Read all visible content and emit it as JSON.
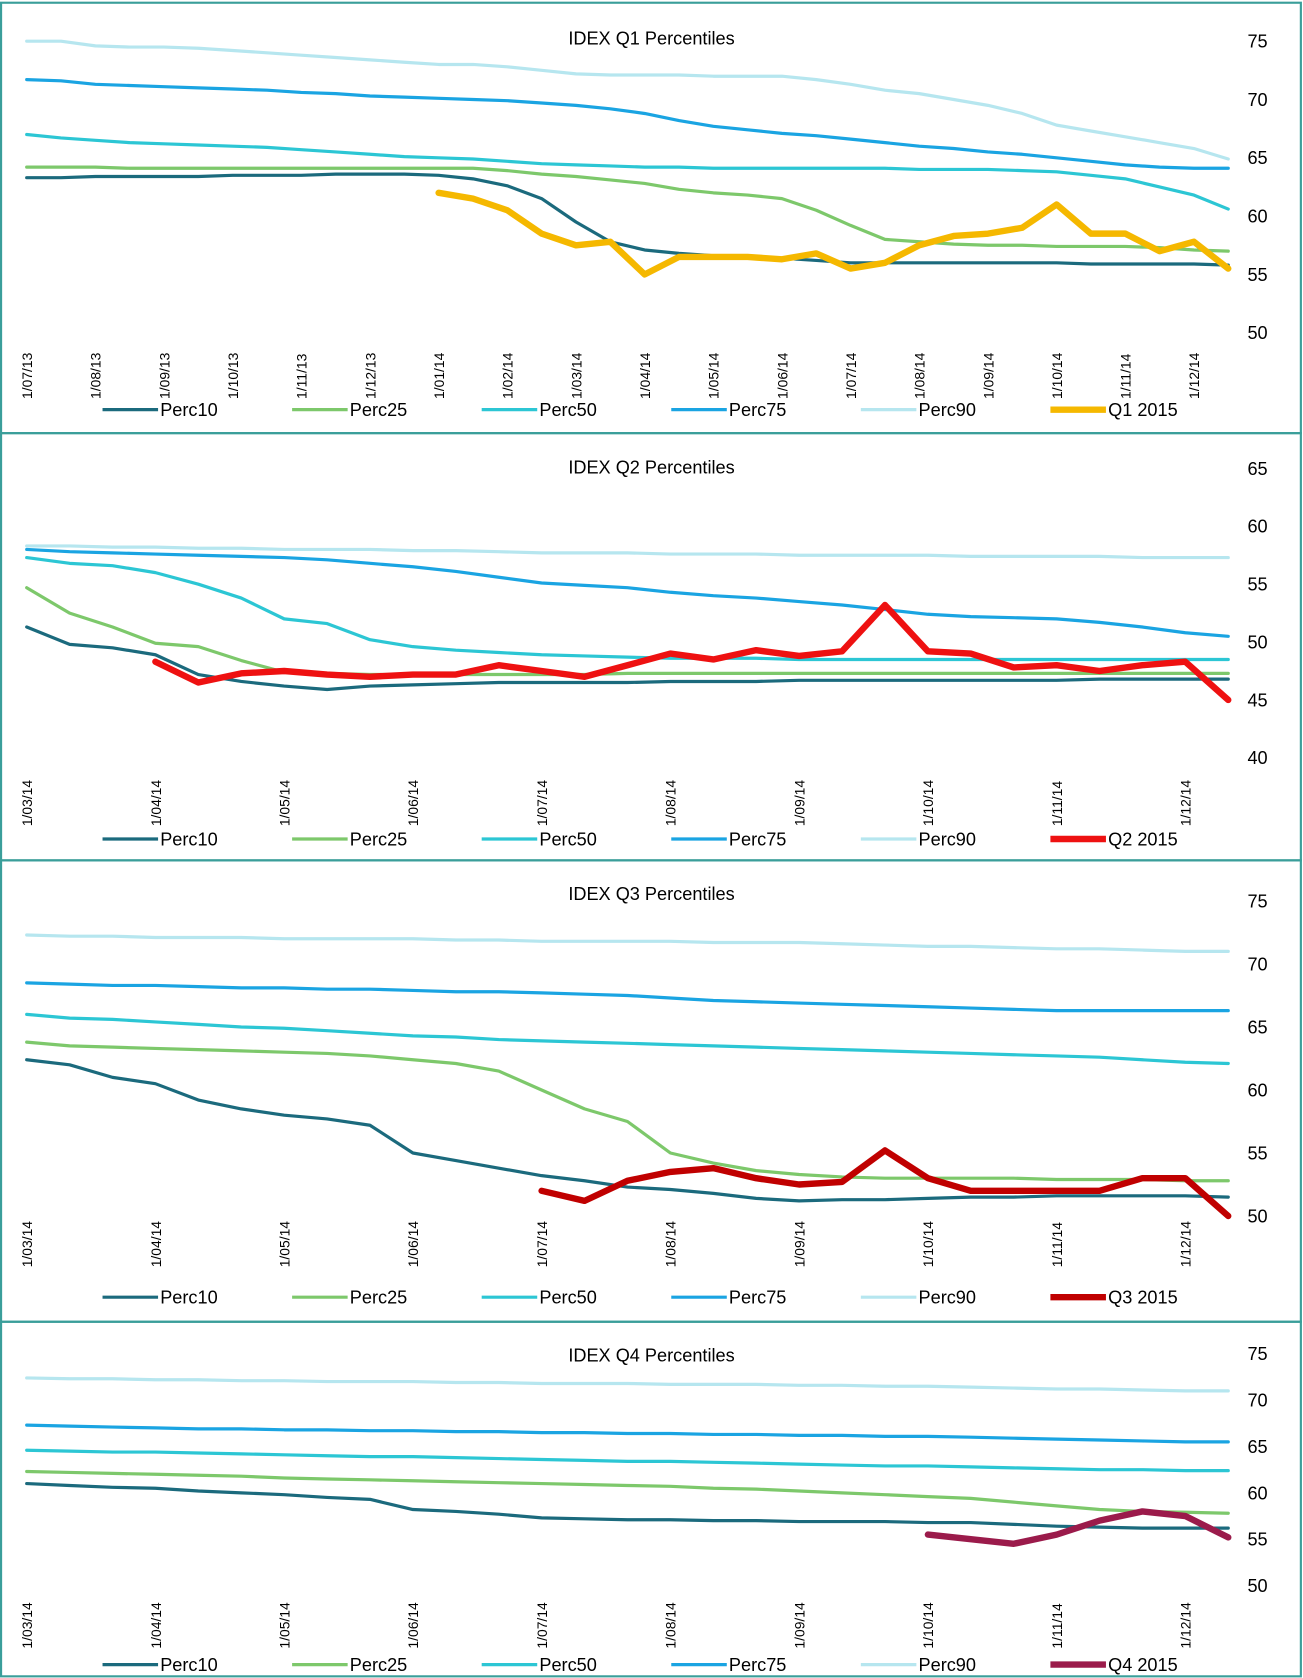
{
  "chart_data": [
    {
      "type": "line",
      "title": "IDEX Q1 Percentiles",
      "legend": "bottom",
      "ylim": [
        50,
        75
      ],
      "yticks": [
        50,
        55,
        60,
        65,
        70,
        75
      ],
      "categories": [
        "1/07/13",
        null,
        "1/08/13",
        null,
        "1/09/13",
        null,
        "1/10/13",
        null,
        "1/11/13",
        null,
        "1/12/13",
        null,
        "1/01/14",
        null,
        "1/02/14",
        null,
        "1/03/14",
        null,
        "1/04/14",
        null,
        "1/05/14",
        null,
        "1/06/14",
        null,
        "1/07/14",
        null,
        "1/08/14",
        null,
        "1/09/14",
        null,
        "1/10/14",
        null,
        "1/11/14",
        null,
        "1/12/14",
        null
      ],
      "series": [
        {
          "name": "Perc10",
          "color": "#1b6a7d",
          "line_width": 3,
          "values": [
            63.3,
            63.3,
            63.4,
            63.4,
            63.4,
            63.4,
            63.5,
            63.5,
            63.5,
            63.6,
            63.6,
            63.6,
            63.5,
            63.2,
            62.6,
            61.5,
            59.5,
            57.8,
            57.1,
            56.8,
            56.6,
            56.5,
            56.4,
            56.2,
            56,
            56,
            56,
            56,
            56,
            56,
            56,
            55.9,
            55.9,
            55.9,
            55.9,
            55.8
          ]
        },
        {
          "name": "Perc25",
          "color": "#7dc86b",
          "line_width": 3,
          "values": [
            64.2,
            64.2,
            64.2,
            64.1,
            64.1,
            64.1,
            64.1,
            64.1,
            64.1,
            64.1,
            64.1,
            64.1,
            64.1,
            64.1,
            63.9,
            63.6,
            63.4,
            63.1,
            62.8,
            62.3,
            62,
            61.8,
            61.5,
            60.5,
            59.2,
            58,
            57.8,
            57.6,
            57.5,
            57.5,
            57.4,
            57.4,
            57.4,
            57.3,
            57.1,
            57
          ]
        },
        {
          "name": "Perc50",
          "color": "#2cc6d4",
          "line_width": 3,
          "values": [
            67,
            66.7,
            66.5,
            66.3,
            66.2,
            66.1,
            66,
            65.9,
            65.7,
            65.5,
            65.3,
            65.1,
            65,
            64.9,
            64.7,
            64.5,
            64.4,
            64.3,
            64.2,
            64.2,
            64.1,
            64.1,
            64.1,
            64.1,
            64.1,
            64.1,
            64,
            64,
            64,
            63.9,
            63.8,
            63.5,
            63.2,
            62.5,
            61.8,
            60.6
          ]
        },
        {
          "name": "Perc75",
          "color": "#1aa4e2",
          "line_width": 3,
          "values": [
            71.7,
            71.6,
            71.3,
            71.2,
            71.1,
            71,
            70.9,
            70.8,
            70.6,
            70.5,
            70.3,
            70.2,
            70.1,
            70,
            69.9,
            69.7,
            69.5,
            69.2,
            68.8,
            68.2,
            67.7,
            67.4,
            67.1,
            66.9,
            66.6,
            66.3,
            66,
            65.8,
            65.5,
            65.3,
            65,
            64.7,
            64.4,
            64.2,
            64.1,
            64.1
          ]
        },
        {
          "name": "Perc90",
          "color": "#b6e6ef",
          "line_width": 3,
          "values": [
            75,
            75,
            74.6,
            74.5,
            74.5,
            74.4,
            74.2,
            74,
            73.8,
            73.6,
            73.4,
            73.2,
            73,
            73,
            72.8,
            72.5,
            72.2,
            72.1,
            72.1,
            72.1,
            72,
            72,
            72,
            71.7,
            71.3,
            70.8,
            70.5,
            70,
            69.5,
            68.8,
            67.8,
            67.3,
            66.8,
            66.3,
            65.8,
            64.9
          ]
        },
        {
          "name": "Q1 2015",
          "color": "#f5b800",
          "line_width": 6,
          "values": [
            null,
            null,
            null,
            null,
            null,
            null,
            null,
            null,
            null,
            null,
            null,
            null,
            62,
            61.5,
            60.5,
            58.5,
            57.5,
            57.8,
            55,
            56.5,
            56.5,
            56.5,
            56.3,
            56.8,
            55.5,
            56,
            57.5,
            58.3,
            58.5,
            59,
            61,
            58.5,
            58.5,
            57,
            57.8,
            55.5
          ]
        }
      ]
    },
    {
      "type": "line",
      "title": "IDEX Q2 Percentiles",
      "legend": "bottom",
      "ylim": [
        40,
        65
      ],
      "yticks": [
        40,
        45,
        50,
        55,
        60,
        65
      ],
      "categories": [
        "1/03/14",
        null,
        null,
        "1/04/14",
        null,
        null,
        "1/05/14",
        null,
        null,
        "1/06/14",
        null,
        null,
        "1/07/14",
        null,
        null,
        "1/08/14",
        null,
        null,
        "1/09/14",
        null,
        null,
        "1/10/14",
        null,
        null,
        "1/11/14",
        null,
        null,
        "1/12/14",
        null
      ],
      "series": [
        {
          "name": "Perc10",
          "color": "#1b6a7d",
          "line_width": 3,
          "values": [
            51.3,
            49.8,
            49.5,
            48.9,
            47.2,
            46.6,
            46.2,
            45.9,
            46.2,
            46.3,
            46.4,
            46.5,
            46.5,
            46.5,
            46.5,
            46.6,
            46.6,
            46.6,
            46.7,
            46.7,
            46.7,
            46.7,
            46.7,
            46.7,
            46.7,
            46.8,
            46.8,
            46.8,
            46.8
          ]
        },
        {
          "name": "Perc25",
          "color": "#7dc86b",
          "line_width": 3,
          "values": [
            54.7,
            52.5,
            51.3,
            49.9,
            49.6,
            48.4,
            47.4,
            47.3,
            47.2,
            47.2,
            47.2,
            47.2,
            47.2,
            47.2,
            47.3,
            47.3,
            47.3,
            47.3,
            47.3,
            47.3,
            47.3,
            47.3,
            47.3,
            47.3,
            47.3,
            47.3,
            47.3,
            47.3,
            47.3
          ]
        },
        {
          "name": "Perc50",
          "color": "#2cc6d4",
          "line_width": 3,
          "values": [
            57.3,
            56.8,
            56.6,
            56,
            55,
            53.8,
            52,
            51.6,
            50.2,
            49.6,
            49.3,
            49.1,
            48.9,
            48.8,
            48.7,
            48.6,
            48.6,
            48.6,
            48.5,
            48.5,
            48.5,
            48.5,
            48.5,
            48.5,
            48.5,
            48.5,
            48.5,
            48.5,
            48.5
          ]
        },
        {
          "name": "Perc75",
          "color": "#1aa4e2",
          "line_width": 3,
          "values": [
            58,
            57.8,
            57.7,
            57.6,
            57.5,
            57.4,
            57.3,
            57.1,
            56.8,
            56.5,
            56.1,
            55.6,
            55.1,
            54.9,
            54.7,
            54.3,
            54,
            53.8,
            53.5,
            53.2,
            52.8,
            52.4,
            52.2,
            52.1,
            52,
            51.7,
            51.3,
            50.8,
            50.5
          ]
        },
        {
          "name": "Perc90",
          "color": "#b6e6ef",
          "line_width": 3,
          "values": [
            58.3,
            58.3,
            58.2,
            58.2,
            58.1,
            58.1,
            58,
            58,
            58,
            57.9,
            57.9,
            57.8,
            57.7,
            57.7,
            57.7,
            57.6,
            57.6,
            57.6,
            57.5,
            57.5,
            57.5,
            57.5,
            57.4,
            57.4,
            57.4,
            57.4,
            57.3,
            57.3,
            57.3
          ]
        },
        {
          "name": "Q2 2015",
          "color": "#ee1111",
          "line_width": 6,
          "values": [
            null,
            null,
            null,
            48.3,
            46.5,
            47.3,
            47.5,
            47.2,
            47,
            47.2,
            47.2,
            48,
            47.5,
            47,
            48,
            49,
            48.5,
            49.3,
            48.8,
            49.2,
            53.2,
            49.2,
            49,
            47.8,
            48,
            47.5,
            48,
            48.3,
            45
          ]
        }
      ]
    },
    {
      "type": "line",
      "title": "IDEX Q3 Percentiles",
      "legend": "bottom",
      "ylim": [
        50,
        75
      ],
      "yticks": [
        50,
        55,
        60,
        65,
        70,
        75
      ],
      "categories": [
        "1/03/14",
        null,
        null,
        "1/04/14",
        null,
        null,
        "1/05/14",
        null,
        null,
        "1/06/14",
        null,
        null,
        "1/07/14",
        null,
        null,
        "1/08/14",
        null,
        null,
        "1/09/14",
        null,
        null,
        "1/10/14",
        null,
        null,
        "1/11/14",
        null,
        null,
        "1/12/14",
        null
      ],
      "series": [
        {
          "name": "Perc10",
          "color": "#1b6a7d",
          "line_width": 3,
          "values": [
            62.4,
            62,
            61,
            60.5,
            59.2,
            58.5,
            58,
            57.7,
            57.2,
            55,
            54.4,
            53.8,
            53.2,
            52.8,
            52.3,
            52.1,
            51.8,
            51.4,
            51.2,
            51.3,
            51.3,
            51.4,
            51.5,
            51.5,
            51.6,
            51.6,
            51.6,
            51.6,
            51.5
          ]
        },
        {
          "name": "Perc25",
          "color": "#7dc86b",
          "line_width": 3,
          "values": [
            63.8,
            63.5,
            63.4,
            63.3,
            63.2,
            63.1,
            63,
            62.9,
            62.7,
            62.4,
            62.1,
            61.5,
            60,
            58.5,
            57.5,
            55,
            54.2,
            53.6,
            53.3,
            53.1,
            53,
            53,
            53,
            53,
            52.9,
            52.9,
            52.9,
            52.8,
            52.8
          ]
        },
        {
          "name": "Perc50",
          "color": "#2cc6d4",
          "line_width": 3,
          "values": [
            66,
            65.7,
            65.6,
            65.4,
            65.2,
            65,
            64.9,
            64.7,
            64.5,
            64.3,
            64.2,
            64,
            63.9,
            63.8,
            63.7,
            63.6,
            63.5,
            63.4,
            63.3,
            63.2,
            63.1,
            63,
            62.9,
            62.8,
            62.7,
            62.6,
            62.4,
            62.2,
            62.1
          ]
        },
        {
          "name": "Perc75",
          "color": "#1aa4e2",
          "line_width": 3,
          "values": [
            68.5,
            68.4,
            68.3,
            68.3,
            68.2,
            68.1,
            68.1,
            68,
            68,
            67.9,
            67.8,
            67.8,
            67.7,
            67.6,
            67.5,
            67.3,
            67.1,
            67,
            66.9,
            66.8,
            66.7,
            66.6,
            66.5,
            66.4,
            66.3,
            66.3,
            66.3,
            66.3,
            66.3
          ]
        },
        {
          "name": "Perc90",
          "color": "#b6e6ef",
          "line_width": 3,
          "values": [
            72.3,
            72.2,
            72.2,
            72.1,
            72.1,
            72.1,
            72,
            72,
            72,
            72,
            71.9,
            71.9,
            71.8,
            71.8,
            71.8,
            71.8,
            71.7,
            71.7,
            71.7,
            71.6,
            71.5,
            71.4,
            71.4,
            71.3,
            71.2,
            71.2,
            71.1,
            71,
            71
          ]
        },
        {
          "name": "Q3 2015",
          "color": "#c00000",
          "line_width": 6,
          "values": [
            null,
            null,
            null,
            null,
            null,
            null,
            null,
            null,
            null,
            null,
            null,
            null,
            52,
            51.2,
            52.8,
            53.5,
            53.8,
            53,
            52.5,
            52.7,
            55.2,
            53,
            52,
            52,
            52,
            52,
            53,
            53,
            50
          ]
        }
      ]
    },
    {
      "type": "line",
      "title": "IDEX Q4 Percentiles",
      "legend": "bottom",
      "ylim": [
        50,
        75
      ],
      "yticks": [
        50,
        55,
        60,
        65,
        70,
        75
      ],
      "categories": [
        "1/03/14",
        null,
        null,
        "1/04/14",
        null,
        null,
        "1/05/14",
        null,
        null,
        "1/06/14",
        null,
        null,
        "1/07/14",
        null,
        null,
        "1/08/14",
        null,
        null,
        "1/09/14",
        null,
        null,
        "1/10/14",
        null,
        null,
        "1/11/14",
        null,
        null,
        "1/12/14",
        null
      ],
      "series": [
        {
          "name": "Perc10",
          "color": "#1b6a7d",
          "line_width": 3,
          "values": [
            61,
            60.8,
            60.6,
            60.5,
            60.2,
            60,
            59.8,
            59.5,
            59.3,
            58.2,
            58,
            57.7,
            57.3,
            57.2,
            57.1,
            57.1,
            57,
            57,
            56.9,
            56.9,
            56.9,
            56.8,
            56.8,
            56.6,
            56.4,
            56.3,
            56.2,
            56.2,
            56.2
          ]
        },
        {
          "name": "Perc25",
          "color": "#7dc86b",
          "line_width": 3,
          "values": [
            62.3,
            62.2,
            62.1,
            62,
            61.9,
            61.8,
            61.6,
            61.5,
            61.4,
            61.3,
            61.2,
            61.1,
            61,
            60.9,
            60.8,
            60.7,
            60.5,
            60.4,
            60.2,
            60,
            59.8,
            59.6,
            59.4,
            59,
            58.6,
            58.2,
            58,
            57.9,
            57.8
          ]
        },
        {
          "name": "Perc50",
          "color": "#2cc6d4",
          "line_width": 3,
          "values": [
            64.6,
            64.5,
            64.4,
            64.4,
            64.3,
            64.2,
            64.1,
            64,
            63.9,
            63.9,
            63.8,
            63.7,
            63.6,
            63.5,
            63.4,
            63.4,
            63.3,
            63.2,
            63.1,
            63,
            62.9,
            62.9,
            62.8,
            62.7,
            62.6,
            62.5,
            62.5,
            62.4,
            62.4
          ]
        },
        {
          "name": "Perc75",
          "color": "#1aa4e2",
          "line_width": 3,
          "values": [
            67.3,
            67.2,
            67.1,
            67,
            66.9,
            66.9,
            66.8,
            66.8,
            66.7,
            66.7,
            66.6,
            66.6,
            66.5,
            66.5,
            66.4,
            66.4,
            66.3,
            66.3,
            66.2,
            66.2,
            66.1,
            66.1,
            66,
            65.9,
            65.8,
            65.7,
            65.6,
            65.5,
            65.5
          ]
        },
        {
          "name": "Perc90",
          "color": "#b6e6ef",
          "line_width": 3,
          "values": [
            72.4,
            72.3,
            72.3,
            72.2,
            72.2,
            72.1,
            72.1,
            72,
            72,
            72,
            71.9,
            71.9,
            71.8,
            71.8,
            71.8,
            71.7,
            71.7,
            71.7,
            71.6,
            71.6,
            71.5,
            71.5,
            71.4,
            71.3,
            71.2,
            71.2,
            71.1,
            71,
            71
          ]
        },
        {
          "name": "Q4 2015",
          "color": "#9b1b4b",
          "line_width": 6,
          "values": [
            null,
            null,
            null,
            null,
            null,
            null,
            null,
            null,
            null,
            null,
            null,
            null,
            null,
            null,
            null,
            null,
            null,
            null,
            null,
            null,
            null,
            55.5,
            55,
            54.5,
            55.5,
            57,
            58,
            57.5,
            55.2
          ]
        }
      ]
    }
  ]
}
